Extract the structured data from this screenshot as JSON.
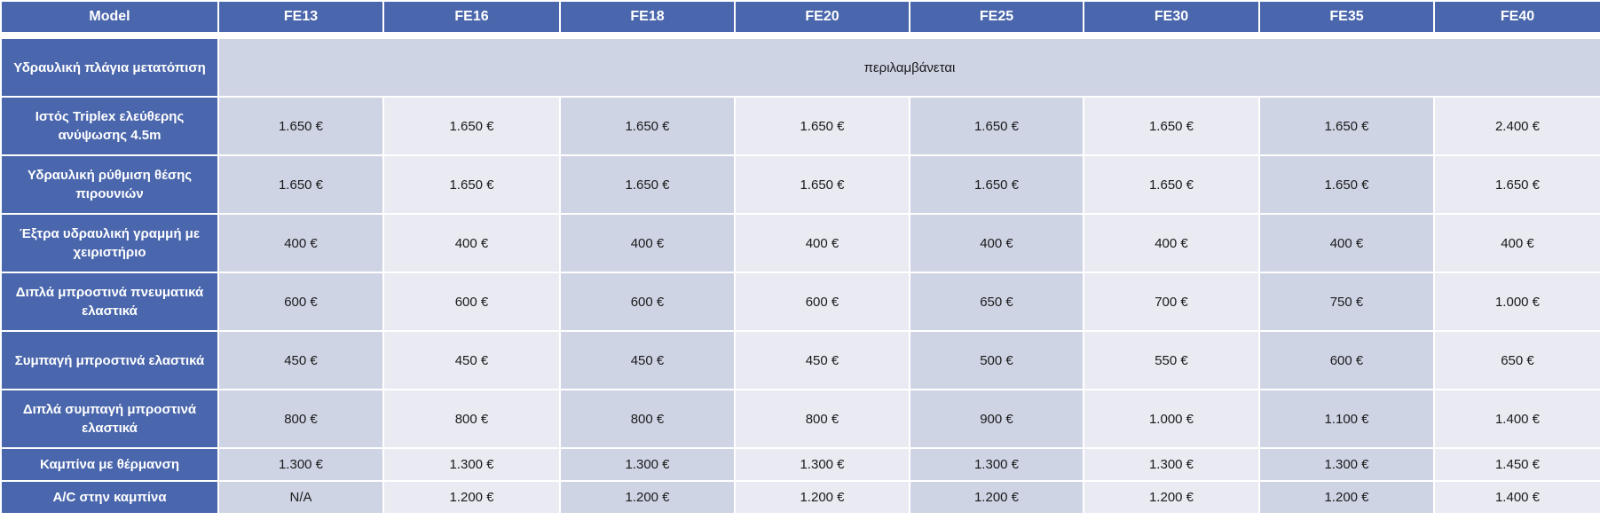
{
  "colors": {
    "header_bg": "#4a66ac",
    "cell_dark": "#cfd4e5",
    "cell_light": "#e9eaf2",
    "header_text": "#ffffff"
  },
  "table": {
    "corner_header": "Model",
    "models": [
      "FE13",
      "FE16",
      "FE18",
      "FE20",
      "FE25",
      "FE30",
      "FE35",
      "FE40"
    ],
    "merged_row": {
      "label": "Υδραυλική πλάγια μετατόπιση",
      "value": "περιλαμβάνεται"
    },
    "rows": [
      {
        "label": "Ιστός Triplex ελεύθερης ανύψωσης 4.5m",
        "values": [
          "1.650 €",
          "1.650 €",
          "1.650 €",
          "1.650 €",
          "1.650 €",
          "1.650 €",
          "1.650 €",
          "2.400 €"
        ]
      },
      {
        "label": "Υδραυλική ρύθμιση θέσης πιρουνιών",
        "values": [
          "1.650 €",
          "1.650 €",
          "1.650 €",
          "1.650 €",
          "1.650 €",
          "1.650 €",
          "1.650 €",
          "1.650 €"
        ]
      },
      {
        "label": "Έξτρα υδραυλική γραμμή με χειριστήριο",
        "values": [
          "400 €",
          "400 €",
          "400 €",
          "400 €",
          "400 €",
          "400 €",
          "400 €",
          "400 €"
        ]
      },
      {
        "label": "Διπλά μπροστινά πνευματικά ελαστικά",
        "values": [
          "600 €",
          "600 €",
          "600 €",
          "600 €",
          "650 €",
          "700 €",
          "750 €",
          "1.000 €"
        ]
      },
      {
        "label": "Συμπαγή μπροστινά ελαστικά",
        "values": [
          "450 €",
          "450 €",
          "450 €",
          "450 €",
          "500 €",
          "550 €",
          "600 €",
          "650 €"
        ]
      },
      {
        "label": "Διπλά συμπαγή μπροστινά ελαστικά",
        "values": [
          "800 €",
          "800 €",
          "800 €",
          "800 €",
          "900 €",
          "1.000 €",
          "1.100 €",
          "1.400 €"
        ]
      },
      {
        "label": "Καμπίνα με θέρμανση",
        "values": [
          "1.300 €",
          "1.300 €",
          "1.300 €",
          "1.300 €",
          "1.300 €",
          "1.300 €",
          "1.300 €",
          "1.450 €"
        ]
      },
      {
        "label": "A/C στην καμπίνα",
        "values": [
          "N/A",
          "1.200 €",
          "1.200 €",
          "1.200 €",
          "1.200 €",
          "1.200 €",
          "1.200 €",
          "1.400 €"
        ]
      }
    ]
  }
}
